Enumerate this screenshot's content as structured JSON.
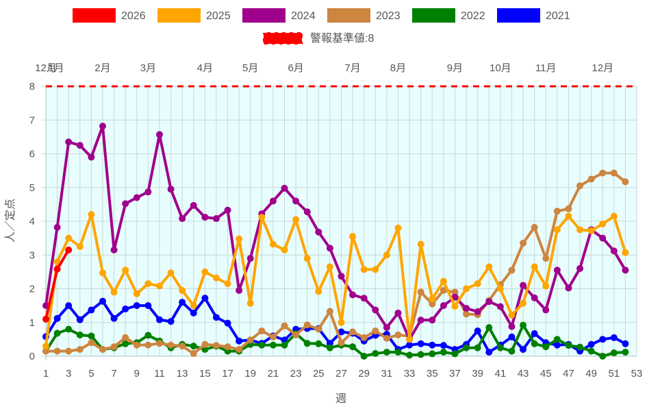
{
  "chart_data": {
    "type": "line",
    "xlabel": "週",
    "ylabel": "人／定点",
    "xlim": [
      1,
      53
    ],
    "ylim": [
      0,
      8
    ],
    "x_ticks": [
      1,
      3,
      5,
      7,
      9,
      11,
      13,
      15,
      17,
      19,
      21,
      23,
      25,
      27,
      29,
      31,
      33,
      35,
      37,
      39,
      41,
      43,
      45,
      47,
      49,
      51,
      53
    ],
    "y_ticks": [
      0,
      1,
      2,
      3,
      4,
      5,
      6,
      7,
      8
    ],
    "month_labels": [
      {
        "week": 1,
        "label": "12月"
      },
      {
        "week": 1.9,
        "label": "1月"
      },
      {
        "week": 6,
        "label": "2月"
      },
      {
        "week": 10,
        "label": "3月"
      },
      {
        "week": 15,
        "label": "4月"
      },
      {
        "week": 19,
        "label": "5月"
      },
      {
        "week": 23,
        "label": "6月"
      },
      {
        "week": 28,
        "label": "7月"
      },
      {
        "week": 32,
        "label": "8月"
      },
      {
        "week": 37,
        "label": "9月"
      },
      {
        "week": 41,
        "label": "10月"
      },
      {
        "week": 45,
        "label": "11月"
      },
      {
        "week": 50,
        "label": "12月"
      }
    ],
    "threshold": {
      "name": "警報基準値:8",
      "value": 8,
      "color": "#ff0000"
    },
    "plot_background": "#e8fdfd",
    "grid": true,
    "legend_position": "top",
    "series": [
      {
        "name": "2026",
        "color": "#ff0000",
        "x": [
          1,
          2,
          3
        ],
        "values": [
          1.1,
          2.58,
          3.15
        ]
      },
      {
        "name": "2025",
        "color": "#ffa500",
        "x": [
          1,
          2,
          3,
          4,
          5,
          6,
          7,
          8,
          9,
          10,
          11,
          12,
          13,
          14,
          15,
          16,
          17,
          18,
          19,
          20,
          21,
          22,
          23,
          24,
          25,
          26,
          27,
          28,
          29,
          30,
          31,
          32,
          33,
          34,
          35,
          36,
          37,
          38,
          39,
          40,
          41,
          42,
          43,
          44,
          45,
          46,
          47,
          48,
          49,
          50,
          51,
          52
        ],
        "values": [
          0.3,
          2.8,
          3.5,
          3.25,
          4.2,
          2.47,
          1.9,
          2.55,
          1.85,
          2.15,
          2.08,
          2.47,
          1.95,
          1.5,
          2.5,
          2.32,
          2.15,
          3.48,
          1.57,
          4.12,
          3.32,
          3.15,
          4.05,
          2.9,
          1.92,
          2.65,
          1.0,
          3.55,
          2.57,
          2.57,
          3.0,
          3.8,
          0.5,
          3.32,
          1.7,
          2.22,
          1.48,
          2.0,
          2.15,
          2.65,
          2.0,
          1.22,
          1.57,
          2.65,
          2.08,
          3.75,
          4.15,
          3.75,
          3.72,
          3.92,
          4.15,
          3.07
        ]
      },
      {
        "name": "2024",
        "color": "#a0008c",
        "x": [
          1,
          2,
          3,
          4,
          5,
          6,
          7,
          8,
          9,
          10,
          11,
          12,
          13,
          14,
          15,
          16,
          17,
          18,
          19,
          20,
          21,
          22,
          23,
          24,
          25,
          26,
          27,
          28,
          29,
          30,
          31,
          32,
          33,
          34,
          35,
          36,
          37,
          38,
          39,
          40,
          41,
          42,
          43,
          44,
          45,
          46,
          47,
          48,
          49,
          50,
          51,
          52
        ],
        "values": [
          1.5,
          3.82,
          6.35,
          6.25,
          5.9,
          6.82,
          3.15,
          4.52,
          4.7,
          4.87,
          6.57,
          4.95,
          4.08,
          4.47,
          4.12,
          4.08,
          4.33,
          1.95,
          2.9,
          4.22,
          4.6,
          4.98,
          4.6,
          4.28,
          3.68,
          3.2,
          2.37,
          1.82,
          1.72,
          1.37,
          0.85,
          1.28,
          0.5,
          1.07,
          1.07,
          1.5,
          1.75,
          1.42,
          1.32,
          1.62,
          1.47,
          0.88,
          2.1,
          1.73,
          1.37,
          2.55,
          2.02,
          2.6,
          3.75,
          3.5,
          3.12,
          2.55
        ]
      },
      {
        "name": "2023",
        "color": "#cd853f",
        "x": [
          1,
          2,
          3,
          4,
          5,
          6,
          7,
          8,
          9,
          10,
          11,
          12,
          13,
          14,
          15,
          16,
          17,
          18,
          19,
          20,
          21,
          22,
          23,
          24,
          25,
          26,
          27,
          28,
          29,
          30,
          31,
          32,
          33,
          34,
          35,
          36,
          37,
          38,
          39,
          40,
          41,
          42,
          43,
          44,
          45,
          46,
          47,
          48,
          49,
          50,
          51,
          52
        ],
        "values": [
          0.15,
          0.15,
          0.15,
          0.2,
          0.4,
          0.2,
          0.28,
          0.55,
          0.33,
          0.33,
          0.38,
          0.33,
          0.3,
          0.08,
          0.35,
          0.32,
          0.28,
          0.2,
          0.48,
          0.75,
          0.57,
          0.9,
          0.63,
          0.93,
          0.8,
          1.33,
          0.4,
          0.72,
          0.55,
          0.75,
          0.53,
          0.63,
          0.6,
          1.9,
          1.55,
          1.95,
          1.9,
          1.25,
          1.23,
          1.65,
          2.12,
          2.55,
          3.35,
          3.82,
          2.9,
          4.3,
          4.37,
          5.05,
          5.25,
          5.43,
          5.43,
          5.17
        ]
      },
      {
        "name": "2022",
        "color": "#008000",
        "x": [
          1,
          2,
          3,
          4,
          5,
          6,
          7,
          8,
          9,
          10,
          11,
          12,
          13,
          14,
          15,
          16,
          17,
          18,
          19,
          20,
          21,
          22,
          23,
          24,
          25,
          26,
          27,
          28,
          29,
          30,
          31,
          32,
          33,
          34,
          35,
          36,
          37,
          38,
          39,
          40,
          41,
          42,
          43,
          44,
          45,
          46,
          47,
          48,
          49,
          50,
          51,
          52
        ],
        "values": [
          0.15,
          0.68,
          0.8,
          0.63,
          0.6,
          0.2,
          0.25,
          0.37,
          0.4,
          0.62,
          0.45,
          0.25,
          0.35,
          0.3,
          0.2,
          0.3,
          0.15,
          0.15,
          0.35,
          0.33,
          0.33,
          0.33,
          0.67,
          0.38,
          0.37,
          0.25,
          0.33,
          0.28,
          0.0,
          0.08,
          0.12,
          0.12,
          0.03,
          0.05,
          0.07,
          0.12,
          0.07,
          0.25,
          0.25,
          0.85,
          0.25,
          0.15,
          0.92,
          0.37,
          0.28,
          0.5,
          0.32,
          0.27,
          0.15,
          0.0,
          0.1,
          0.12
        ]
      },
      {
        "name": "2021",
        "color": "#0000ff",
        "x": [
          1,
          2,
          3,
          4,
          5,
          6,
          7,
          8,
          9,
          10,
          11,
          12,
          13,
          14,
          15,
          16,
          17,
          18,
          19,
          20,
          21,
          22,
          23,
          24,
          25,
          26,
          27,
          28,
          29,
          30,
          31,
          32,
          33,
          34,
          35,
          36,
          37,
          38,
          39,
          40,
          41,
          42,
          43,
          44,
          45,
          46,
          47,
          48,
          49,
          50,
          51,
          52
        ],
        "values": [
          0.58,
          1.12,
          1.5,
          1.08,
          1.37,
          1.63,
          1.12,
          1.4,
          1.5,
          1.5,
          1.08,
          1.03,
          1.6,
          1.28,
          1.72,
          1.15,
          0.98,
          0.45,
          0.48,
          0.38,
          0.6,
          0.48,
          0.8,
          0.82,
          0.82,
          0.38,
          0.72,
          0.68,
          0.45,
          0.62,
          0.65,
          0.2,
          0.33,
          0.37,
          0.33,
          0.32,
          0.2,
          0.35,
          0.75,
          0.12,
          0.33,
          0.57,
          0.2,
          0.67,
          0.4,
          0.33,
          0.35,
          0.15,
          0.35,
          0.5,
          0.55,
          0.37
        ]
      }
    ]
  }
}
